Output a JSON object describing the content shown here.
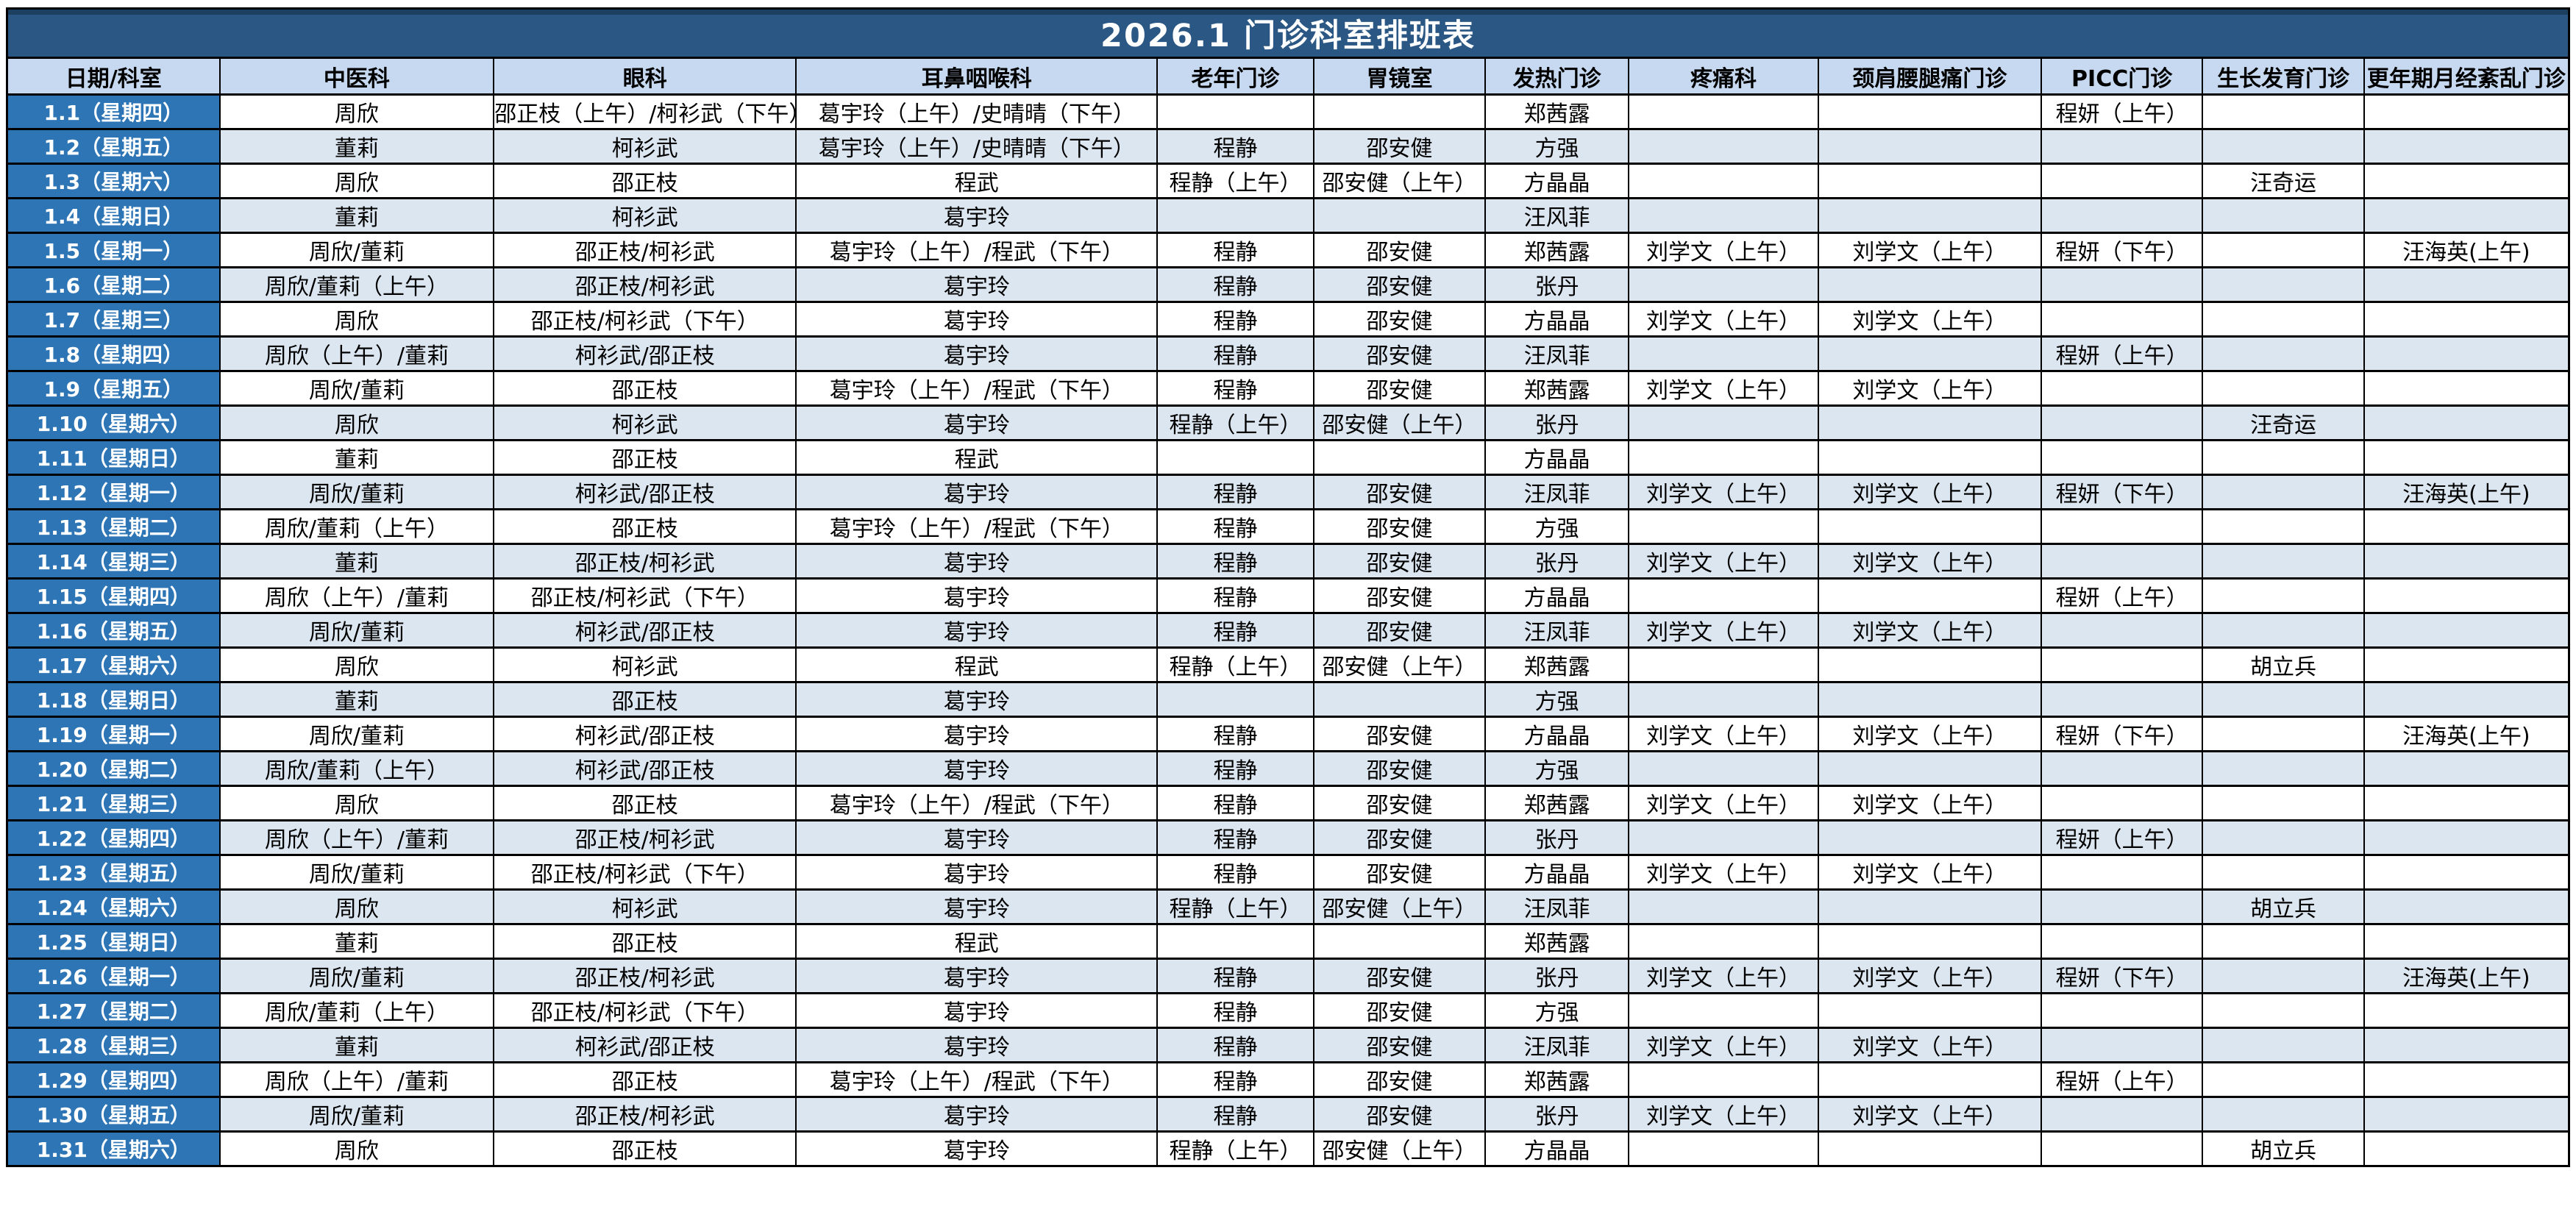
{
  "title": "2026.1  门诊科室排班表",
  "colors": {
    "title_bar": "#2A5783",
    "title_bar_top_strip": "#1D3F60",
    "header_row": "#C6D9F0",
    "date_column": "#2E75B6",
    "stripe_row": "#DCE6F1",
    "plain_row": "#FFFFFF",
    "grid_border": "#000000",
    "title_text": "#FFFFFF"
  },
  "table": {
    "columns": [
      "日期/科室",
      "中医科",
      "眼科",
      "耳鼻咽喉科",
      "老年门诊",
      "胃镜室",
      "发热门诊",
      "疼痛科",
      "颈肩腰腿痛门诊",
      "PICC门诊",
      "生长发育门诊",
      "更年期月经紊乱门诊"
    ],
    "rows": [
      {
        "date": "1.1（星期四）",
        "cells": [
          "周欣",
          "邵正枝（上午）/柯衫武（下午）",
          "葛宇玲（上午）/史晴晴（下午）",
          "",
          "",
          "郑茜露",
          "",
          "",
          "程妍（上午）",
          "",
          ""
        ]
      },
      {
        "date": "1.2（星期五）",
        "cells": [
          "董莉",
          "柯衫武",
          "葛宇玲（上午）/史晴晴（下午）",
          "程静",
          "邵安健",
          "方强",
          "",
          "",
          "",
          "",
          ""
        ]
      },
      {
        "date": "1.3（星期六）",
        "cells": [
          "周欣",
          "邵正枝",
          "程武",
          "程静（上午）",
          "邵安健（上午）",
          "方晶晶",
          "",
          "",
          "",
          "汪奇运",
          ""
        ]
      },
      {
        "date": "1.4（星期日）",
        "cells": [
          "董莉",
          "柯衫武",
          "葛宇玲",
          "",
          "",
          "汪风菲",
          "",
          "",
          "",
          "",
          ""
        ]
      },
      {
        "date": "1.5（星期一）",
        "cells": [
          "周欣/董莉",
          "邵正枝/柯衫武",
          "葛宇玲（上午）/程武（下午）",
          "程静",
          "邵安健",
          "郑茜露",
          "刘学文（上午）",
          "刘学文（上午）",
          "程妍（下午）",
          "",
          "汪海英(上午)"
        ]
      },
      {
        "date": "1.6（星期二）",
        "cells": [
          "周欣/董莉（上午）",
          "邵正枝/柯衫武",
          "葛宇玲",
          "程静",
          "邵安健",
          "张丹",
          "",
          "",
          "",
          "",
          ""
        ]
      },
      {
        "date": "1.7（星期三）",
        "cells": [
          "周欣",
          "邵正枝/柯衫武（下午）",
          "葛宇玲",
          "程静",
          "邵安健",
          "方晶晶",
          "刘学文（上午）",
          "刘学文（上午）",
          "",
          "",
          ""
        ]
      },
      {
        "date": "1.8（星期四）",
        "cells": [
          "周欣（上午）/董莉",
          "柯衫武/邵正枝",
          "葛宇玲",
          "程静",
          "邵安健",
          "汪凤菲",
          "",
          "",
          "程妍（上午）",
          "",
          ""
        ]
      },
      {
        "date": "1.9（星期五）",
        "cells": [
          "周欣/董莉",
          "邵正枝",
          "葛宇玲（上午）/程武（下午）",
          "程静",
          "邵安健",
          "郑茜露",
          "刘学文（上午）",
          "刘学文（上午）",
          "",
          "",
          ""
        ]
      },
      {
        "date": "1.10（星期六）",
        "cells": [
          "周欣",
          "柯衫武",
          "葛宇玲",
          "程静（上午）",
          "邵安健（上午）",
          "张丹",
          "",
          "",
          "",
          "汪奇运",
          ""
        ]
      },
      {
        "date": "1.11（星期日）",
        "cells": [
          "董莉",
          "邵正枝",
          "程武",
          "",
          "",
          "方晶晶",
          "",
          "",
          "",
          "",
          ""
        ]
      },
      {
        "date": "1.12（星期一）",
        "cells": [
          "周欣/董莉",
          "柯衫武/邵正枝",
          "葛宇玲",
          "程静",
          "邵安健",
          "汪凤菲",
          "刘学文（上午）",
          "刘学文（上午）",
          "程妍（下午）",
          "",
          "汪海英(上午)"
        ]
      },
      {
        "date": "1.13（星期二）",
        "cells": [
          "周欣/董莉（上午）",
          "邵正枝",
          "葛宇玲（上午）/程武（下午）",
          "程静",
          "邵安健",
          "方强",
          "",
          "",
          "",
          "",
          ""
        ]
      },
      {
        "date": "1.14（星期三）",
        "cells": [
          "董莉",
          "邵正枝/柯衫武",
          "葛宇玲",
          "程静",
          "邵安健",
          "张丹",
          "刘学文（上午）",
          "刘学文（上午）",
          "",
          "",
          ""
        ]
      },
      {
        "date": "1.15（星期四）",
        "cells": [
          "周欣（上午）/董莉",
          "邵正枝/柯衫武（下午）",
          "葛宇玲",
          "程静",
          "邵安健",
          "方晶晶",
          "",
          "",
          "程妍（上午）",
          "",
          ""
        ]
      },
      {
        "date": "1.16（星期五）",
        "cells": [
          "周欣/董莉",
          "柯衫武/邵正枝",
          "葛宇玲",
          "程静",
          "邵安健",
          "汪凤菲",
          "刘学文（上午）",
          "刘学文（上午）",
          "",
          "",
          ""
        ]
      },
      {
        "date": "1.17（星期六）",
        "cells": [
          "周欣",
          "柯衫武",
          "程武",
          "程静（上午）",
          "邵安健（上午）",
          "郑茜露",
          "",
          "",
          "",
          "胡立兵",
          ""
        ]
      },
      {
        "date": "1.18（星期日）",
        "cells": [
          "董莉",
          "邵正枝",
          "葛宇玲",
          "",
          "",
          "方强",
          "",
          "",
          "",
          "",
          ""
        ]
      },
      {
        "date": "1.19（星期一）",
        "cells": [
          "周欣/董莉",
          "柯衫武/邵正枝",
          "葛宇玲",
          "程静",
          "邵安健",
          "方晶晶",
          "刘学文（上午）",
          "刘学文（上午）",
          "程妍（下午）",
          "",
          "汪海英(上午)"
        ]
      },
      {
        "date": "1.20（星期二）",
        "cells": [
          "周欣/董莉（上午）",
          "柯衫武/邵正枝",
          "葛宇玲",
          "程静",
          "邵安健",
          "方强",
          "",
          "",
          "",
          "",
          ""
        ]
      },
      {
        "date": "1.21（星期三）",
        "cells": [
          "周欣",
          "邵正枝",
          "葛宇玲（上午）/程武（下午）",
          "程静",
          "邵安健",
          "郑茜露",
          "刘学文（上午）",
          "刘学文（上午）",
          "",
          "",
          ""
        ]
      },
      {
        "date": "1.22（星期四）",
        "cells": [
          "周欣（上午）/董莉",
          "邵正枝/柯衫武",
          "葛宇玲",
          "程静",
          "邵安健",
          "张丹",
          "",
          "",
          "程妍（上午）",
          "",
          ""
        ]
      },
      {
        "date": "1.23（星期五）",
        "cells": [
          "周欣/董莉",
          "邵正枝/柯衫武（下午）",
          "葛宇玲",
          "程静",
          "邵安健",
          "方晶晶",
          "刘学文（上午）",
          "刘学文（上午）",
          "",
          "",
          ""
        ]
      },
      {
        "date": "1.24（星期六）",
        "cells": [
          "周欣",
          "柯衫武",
          "葛宇玲",
          "程静（上午）",
          "邵安健（上午）",
          "汪凤菲",
          "",
          "",
          "",
          "胡立兵",
          ""
        ]
      },
      {
        "date": "1.25（星期日）",
        "cells": [
          "董莉",
          "邵正枝",
          "程武",
          "",
          "",
          "郑茜露",
          "",
          "",
          "",
          "",
          ""
        ]
      },
      {
        "date": "1.26（星期一）",
        "cells": [
          "周欣/董莉",
          "邵正枝/柯衫武",
          "葛宇玲",
          "程静",
          "邵安健",
          "张丹",
          "刘学文（上午）",
          "刘学文（上午）",
          "程妍（下午）",
          "",
          "汪海英(上午)"
        ]
      },
      {
        "date": "1.27（星期二）",
        "cells": [
          "周欣/董莉（上午）",
          "邵正枝/柯衫武（下午）",
          "葛宇玲",
          "程静",
          "邵安健",
          "方强",
          "",
          "",
          "",
          "",
          ""
        ]
      },
      {
        "date": "1.28（星期三）",
        "cells": [
          "董莉",
          "柯衫武/邵正枝",
          "葛宇玲",
          "程静",
          "邵安健",
          "汪凤菲",
          "刘学文（上午）",
          "刘学文（上午）",
          "",
          "",
          ""
        ]
      },
      {
        "date": "1.29（星期四）",
        "cells": [
          "周欣（上午）/董莉",
          "邵正枝",
          "葛宇玲（上午）/程武（下午）",
          "程静",
          "邵安健",
          "郑茜露",
          "",
          "",
          "程妍（上午）",
          "",
          ""
        ]
      },
      {
        "date": "1.30（星期五）",
        "cells": [
          "周欣/董莉",
          "邵正枝/柯衫武",
          "葛宇玲",
          "程静",
          "邵安健",
          "张丹",
          "刘学文（上午）",
          "刘学文（上午）",
          "",
          "",
          ""
        ]
      },
      {
        "date": "1.31（星期六）",
        "cells": [
          "周欣",
          "邵正枝",
          "葛宇玲",
          "程静（上午）",
          "邵安健（上午）",
          "方晶晶",
          "",
          "",
          "",
          "胡立兵",
          ""
        ]
      }
    ]
  }
}
